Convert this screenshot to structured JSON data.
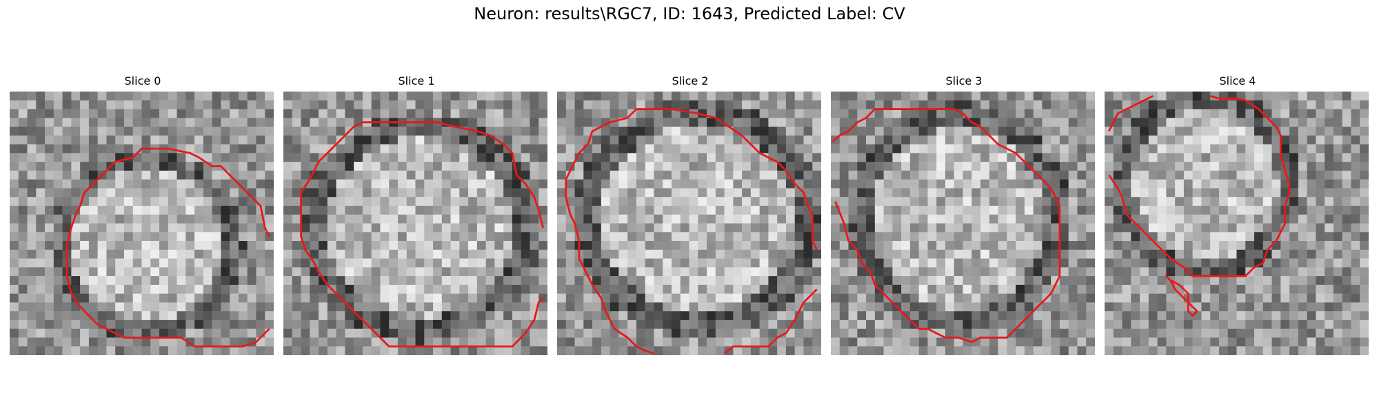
{
  "figure": {
    "title": "Neuron: results\\RGC7, ID: 1643, Predicted Label: CV"
  },
  "slices": [
    {
      "title": "Slice 0"
    },
    {
      "title": "Slice 1"
    },
    {
      "title": "Slice 2"
    },
    {
      "title": "Slice 3"
    },
    {
      "title": "Slice 4"
    }
  ],
  "contour_color": "#e8191a"
}
